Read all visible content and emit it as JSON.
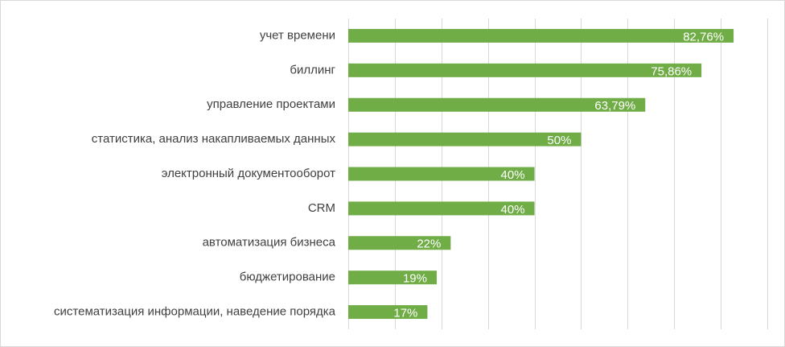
{
  "chart_data": {
    "type": "bar",
    "orientation": "horizontal",
    "categories": [
      "учет времени",
      "биллинг",
      "управление проектами",
      "статистика, анализ накапливаемых данных",
      "электронный документооборот",
      "CRM",
      "автоматизация бизнеса",
      "бюджетирование",
      "систематизация информации, наведение порядка"
    ],
    "values": [
      82.76,
      75.86,
      63.79,
      50,
      40,
      40,
      22,
      19,
      17
    ],
    "value_labels": [
      "82,76%",
      "75,86%",
      "63,79%",
      "50%",
      "40%",
      "40%",
      "22%",
      "19%",
      "17%"
    ],
    "xlim": [
      0,
      90
    ],
    "grid": true,
    "bar_color": "#70ad47",
    "grid_color": "#d9d9d9",
    "legend": "none"
  }
}
